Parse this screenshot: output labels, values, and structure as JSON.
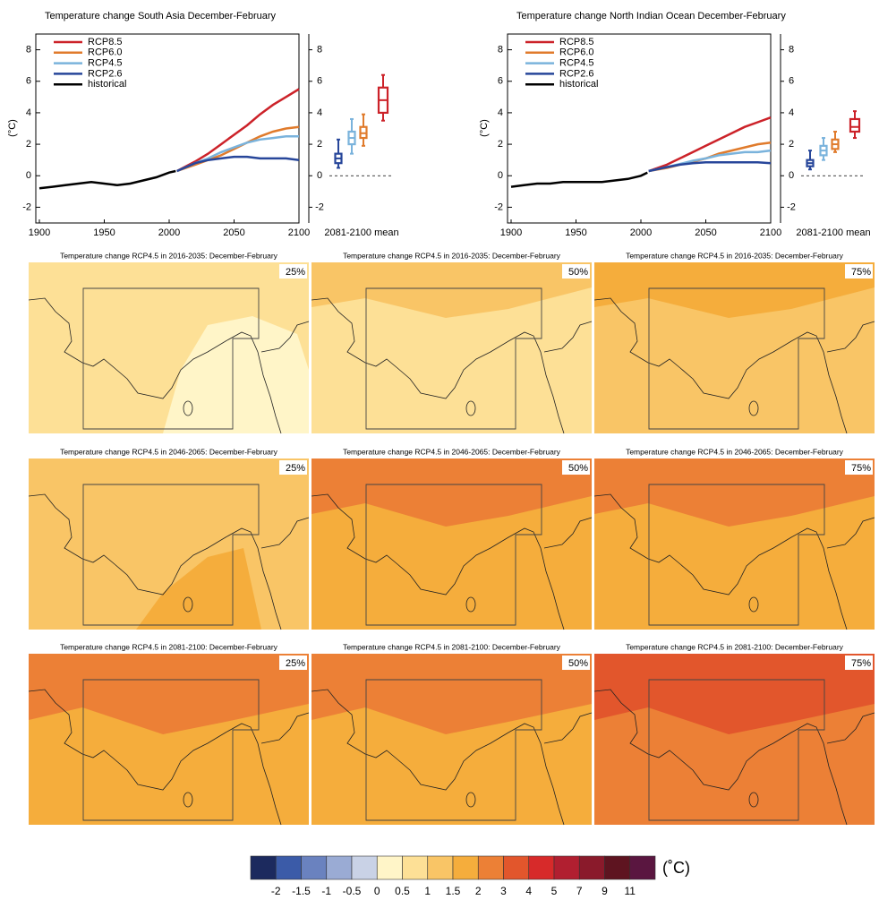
{
  "chart_data": [
    {
      "type": "line",
      "title": "Temperature change South Asia December-February",
      "ylabel": "(°C)",
      "box_label": "2081-2100 mean",
      "xlim": [
        1900,
        2100
      ],
      "xticks": [
        1900,
        1950,
        2000,
        2050,
        2100
      ],
      "ylim": [
        -3,
        9
      ],
      "yticks": [
        -2,
        0,
        2,
        4,
        6,
        8
      ],
      "series": [
        {
          "name": "RCP8.5",
          "color": "#cc2229",
          "x": [
            2006,
            2020,
            2030,
            2040,
            2050,
            2060,
            2070,
            2080,
            2090,
            2100
          ],
          "values": [
            0.3,
            0.9,
            1.4,
            2.0,
            2.6,
            3.2,
            3.9,
            4.5,
            5.0,
            5.5
          ]
        },
        {
          "name": "RCP6.0",
          "color": "#e07b2c",
          "x": [
            2006,
            2020,
            2030,
            2040,
            2050,
            2060,
            2070,
            2080,
            2090,
            2100
          ],
          "values": [
            0.3,
            0.7,
            1.0,
            1.3,
            1.7,
            2.1,
            2.5,
            2.8,
            3.0,
            3.1
          ]
        },
        {
          "name": "RCP4.5",
          "color": "#7ab3dc",
          "x": [
            2006,
            2020,
            2030,
            2040,
            2050,
            2060,
            2070,
            2080,
            2090,
            2100
          ],
          "values": [
            0.3,
            0.8,
            1.1,
            1.5,
            1.8,
            2.1,
            2.3,
            2.4,
            2.5,
            2.5
          ]
        },
        {
          "name": "RCP2.6",
          "color": "#27469a",
          "x": [
            2006,
            2020,
            2030,
            2040,
            2050,
            2060,
            2070,
            2080,
            2090,
            2100
          ],
          "values": [
            0.3,
            0.8,
            1.0,
            1.1,
            1.2,
            1.2,
            1.1,
            1.1,
            1.1,
            1.0
          ]
        },
        {
          "name": "historical",
          "color": "#000000",
          "x": [
            1900,
            1910,
            1920,
            1930,
            1940,
            1950,
            1960,
            1970,
            1980,
            1990,
            2000,
            2005
          ],
          "values": [
            -0.8,
            -0.7,
            -0.6,
            -0.5,
            -0.4,
            -0.5,
            -0.6,
            -0.5,
            -0.3,
            -0.1,
            0.2,
            0.3
          ]
        }
      ],
      "boxes": [
        {
          "color": "#27469a",
          "values": [
            0.5,
            0.8,
            1.1,
            1.4,
            2.3
          ]
        },
        {
          "color": "#7ab3dc",
          "values": [
            1.4,
            2.0,
            2.4,
            2.8,
            3.6
          ]
        },
        {
          "color": "#e07b2c",
          "values": [
            1.9,
            2.4,
            2.7,
            3.1,
            3.9
          ]
        },
        {
          "color": "#cc2229",
          "values": [
            3.5,
            4.0,
            4.8,
            5.6,
            6.4
          ]
        }
      ]
    },
    {
      "type": "line",
      "title": "Temperature change North Indian Ocean December-February",
      "ylabel": "(°C)",
      "box_label": "2081-2100 mean",
      "xlim": [
        1900,
        2100
      ],
      "xticks": [
        1900,
        1950,
        2000,
        2050,
        2100
      ],
      "ylim": [
        -3,
        9
      ],
      "yticks": [
        -2,
        0,
        2,
        4,
        6,
        8
      ],
      "series": [
        {
          "name": "RCP8.5",
          "color": "#cc2229",
          "x": [
            2006,
            2020,
            2030,
            2040,
            2050,
            2060,
            2070,
            2080,
            2090,
            2100
          ],
          "values": [
            0.3,
            0.7,
            1.1,
            1.5,
            1.9,
            2.3,
            2.7,
            3.1,
            3.4,
            3.7
          ]
        },
        {
          "name": "RCP6.0",
          "color": "#e07b2c",
          "x": [
            2006,
            2020,
            2030,
            2040,
            2050,
            2060,
            2070,
            2080,
            2090,
            2100
          ],
          "values": [
            0.3,
            0.5,
            0.7,
            0.9,
            1.1,
            1.4,
            1.6,
            1.8,
            2.0,
            2.1
          ]
        },
        {
          "name": "RCP4.5",
          "color": "#7ab3dc",
          "x": [
            2006,
            2020,
            2030,
            2040,
            2050,
            2060,
            2070,
            2080,
            2090,
            2100
          ],
          "values": [
            0.3,
            0.55,
            0.75,
            0.95,
            1.1,
            1.3,
            1.4,
            1.5,
            1.5,
            1.6
          ]
        },
        {
          "name": "RCP2.6",
          "color": "#27469a",
          "x": [
            2006,
            2020,
            2030,
            2040,
            2050,
            2060,
            2070,
            2080,
            2090,
            2100
          ],
          "values": [
            0.3,
            0.55,
            0.7,
            0.8,
            0.85,
            0.85,
            0.85,
            0.85,
            0.85,
            0.8
          ]
        },
        {
          "name": "historical",
          "color": "#000000",
          "x": [
            1900,
            1910,
            1920,
            1930,
            1940,
            1950,
            1960,
            1970,
            1980,
            1990,
            2000,
            2005
          ],
          "values": [
            -0.7,
            -0.6,
            -0.5,
            -0.5,
            -0.4,
            -0.4,
            -0.4,
            -0.4,
            -0.3,
            -0.2,
            0.0,
            0.2
          ]
        }
      ],
      "boxes": [
        {
          "color": "#27469a",
          "values": [
            0.4,
            0.6,
            0.8,
            1.0,
            1.6
          ]
        },
        {
          "color": "#7ab3dc",
          "values": [
            1.0,
            1.3,
            1.6,
            1.9,
            2.4
          ]
        },
        {
          "color": "#e07b2c",
          "values": [
            1.5,
            1.7,
            2.0,
            2.3,
            2.8
          ]
        },
        {
          "color": "#cc2229",
          "values": [
            2.4,
            2.8,
            3.1,
            3.6,
            4.1
          ]
        }
      ]
    }
  ],
  "maps": [
    {
      "title": "Temperature change RCP4.5 in 2016-2035: December-February",
      "percentile": "25%",
      "fill": "#fde096",
      "patch": "#fff5c8"
    },
    {
      "title": "Temperature change RCP4.5 in 2016-2035: December-February",
      "percentile": "50%",
      "fill": "#fde096",
      "patch": "#f9c566"
    },
    {
      "title": "Temperature change RCP4.5 in 2016-2035: December-February",
      "percentile": "75%",
      "fill": "#f9c566",
      "patch": "#f5ad3c"
    },
    {
      "title": "Temperature change RCP4.5 in 2046-2065: December-February",
      "percentile": "25%",
      "fill": "#f9c566",
      "patch": "#f5ad3c"
    },
    {
      "title": "Temperature change RCP4.5 in 2046-2065: December-February",
      "percentile": "50%",
      "fill": "#f5ad3c",
      "patch": "#ec8036"
    },
    {
      "title": "Temperature change RCP4.5 in 2046-2065: December-February",
      "percentile": "75%",
      "fill": "#f5ad3c",
      "patch": "#ec8036"
    },
    {
      "title": "Temperature change RCP4.5 in 2081-2100: December-February",
      "percentile": "25%",
      "fill": "#f5ad3c",
      "patch": "#ec8036"
    },
    {
      "title": "Temperature change RCP4.5 in 2081-2100: December-February",
      "percentile": "50%",
      "fill": "#f5ad3c",
      "patch": "#ec8036"
    },
    {
      "title": "Temperature change RCP4.5 in 2081-2100: December-February",
      "percentile": "75%",
      "fill": "#ec8036",
      "patch": "#e2562c"
    }
  ],
  "colorbar": {
    "unit": "(˚C)",
    "labels": [
      -2,
      -1.5,
      -1,
      -0.5,
      0,
      0.5,
      1,
      1.5,
      2,
      3,
      4,
      5,
      7,
      9,
      11
    ],
    "colors": [
      "#1c2a5e",
      "#3b5ba8",
      "#6a82bf",
      "#9aabd4",
      "#c9d2e6",
      "#fff5c8",
      "#fde096",
      "#f9c566",
      "#f5ad3c",
      "#ec8036",
      "#e2562c",
      "#d72a2a",
      "#b11f30",
      "#8a1a2b",
      "#5e1420",
      "#5a1640"
    ]
  }
}
